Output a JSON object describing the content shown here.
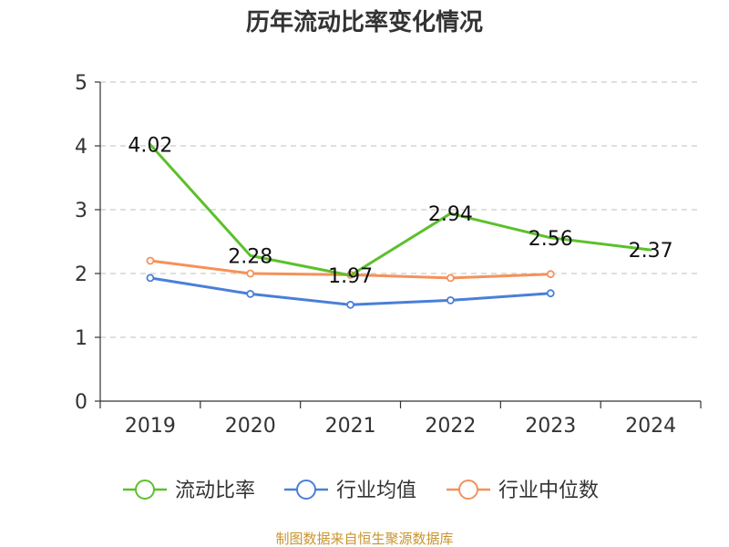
{
  "chart_data": {
    "type": "line",
    "title": "历年流动比率变化情况",
    "categories": [
      "2019",
      "2020",
      "2021",
      "2022",
      "2023",
      "2024"
    ],
    "ylim": [
      0,
      5
    ],
    "yticks": [
      0,
      1,
      2,
      3,
      4,
      5
    ],
    "grid": true,
    "legend_position": "bottom",
    "series": [
      {
        "name": "流动比率",
        "color": "#5cc02b",
        "values": [
          4.02,
          2.28,
          1.97,
          2.94,
          2.56,
          2.37
        ],
        "labels": [
          "4.02",
          "2.28",
          "1.97",
          "2.94",
          "2.56",
          "2.37"
        ],
        "markers": false
      },
      {
        "name": "行业均值",
        "color": "#4a7fd9",
        "values": [
          1.93,
          1.68,
          1.51,
          1.58,
          1.69,
          null
        ],
        "markers": true
      },
      {
        "name": "行业中位数",
        "color": "#f5915a",
        "values": [
          2.2,
          2.0,
          1.98,
          1.93,
          1.99,
          null
        ],
        "markers": true
      }
    ]
  },
  "source": "制图数据来自恒生聚源数据库"
}
